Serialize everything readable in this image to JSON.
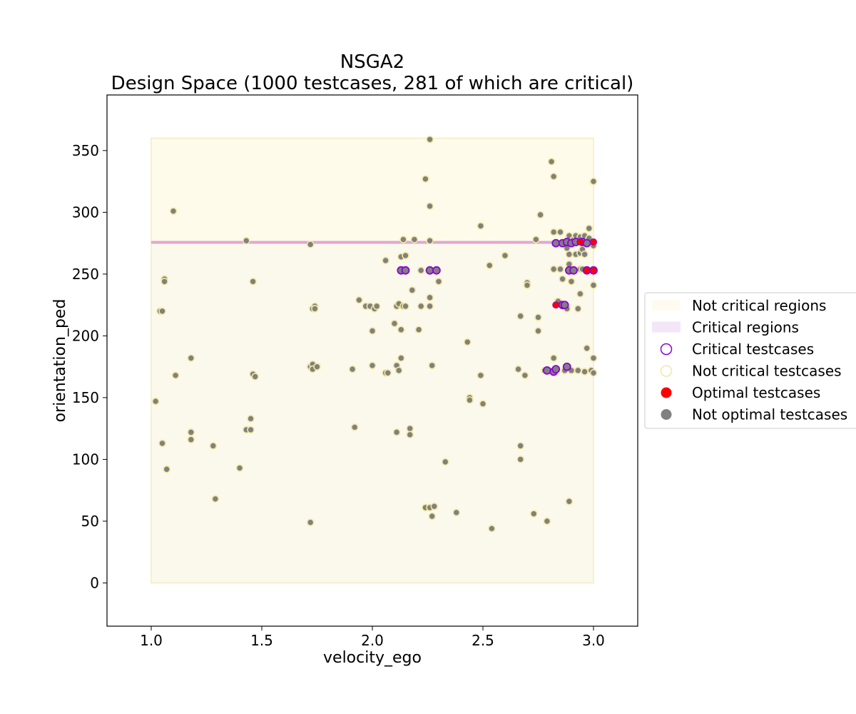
{
  "chart_data": {
    "type": "scatter",
    "title": "NSGA2",
    "subtitle": "Design Space (1000 testcases, 281 of which are critical)",
    "xlabel": "velocity_ego",
    "ylabel": "orientation_ped",
    "xlim": [
      0.8,
      3.2
    ],
    "ylim": [
      -35,
      395
    ],
    "xticks": [
      1.0,
      1.5,
      2.0,
      2.5,
      3.0
    ],
    "xtick_labels": [
      "1.0",
      "1.5",
      "2.0",
      "2.5",
      "3.0"
    ],
    "yticks": [
      0,
      50,
      100,
      150,
      200,
      250,
      300,
      350
    ],
    "ytick_labels": [
      "0",
      "50",
      "100",
      "150",
      "200",
      "250",
      "300",
      "350"
    ],
    "grid": false,
    "legend_position": "right",
    "regions": [
      {
        "name": "Not critical regions",
        "x": [
          1.0,
          3.0
        ],
        "y": [
          275,
          360
        ],
        "color": "#fffbea"
      },
      {
        "name": "Not critical regions",
        "x": [
          1.0,
          3.0
        ],
        "y": [
          0,
          275
        ],
        "color": "#fbf9ec"
      },
      {
        "name": "Critical regions",
        "x": [
          1.0,
          3.0
        ],
        "y": [
          275,
          276
        ],
        "color": "#e0a8cf"
      }
    ],
    "legend": [
      {
        "label": "Not critical regions",
        "kind": "patch",
        "color": "#fffbf0"
      },
      {
        "label": "Critical regions",
        "kind": "patch",
        "color": "#f3e6f9"
      },
      {
        "label": "Critical testcases",
        "kind": "hollow",
        "color": "#8e00d6"
      },
      {
        "label": "Not critical testcases",
        "kind": "hollow",
        "color": "#f2e8a0"
      },
      {
        "label": "Optimal testcases",
        "kind": "filled",
        "color": "#ff0000"
      },
      {
        "label": "Not optimal testcases",
        "kind": "filled",
        "color": "#808080"
      }
    ],
    "colors": {
      "critical_edge": "#8e00d6",
      "noncritical_edge": "#f2e8a0",
      "optimal": "#ff0000",
      "not_optimal": "#808080"
    },
    "series": [
      {
        "name": "Not critical testcases",
        "points": [
          [
            1.02,
            147
          ],
          [
            1.04,
            220
          ],
          [
            1.05,
            220
          ],
          [
            1.05,
            113
          ],
          [
            1.06,
            246
          ],
          [
            1.06,
            244
          ],
          [
            1.07,
            92
          ],
          [
            1.1,
            301
          ],
          [
            1.11,
            168
          ],
          [
            1.18,
            182
          ],
          [
            1.18,
            122
          ],
          [
            1.18,
            116
          ],
          [
            1.28,
            111
          ],
          [
            1.29,
            68
          ],
          [
            1.4,
            93
          ],
          [
            1.43,
            277
          ],
          [
            1.43,
            124
          ],
          [
            1.45,
            124
          ],
          [
            1.45,
            133
          ],
          [
            1.46,
            244
          ],
          [
            1.46,
            169
          ],
          [
            1.47,
            167
          ],
          [
            1.72,
            274
          ],
          [
            1.72,
            175
          ],
          [
            1.72,
            49
          ],
          [
            1.73,
            222
          ],
          [
            1.73,
            177
          ],
          [
            1.73,
            173
          ],
          [
            1.74,
            224
          ],
          [
            1.74,
            222
          ],
          [
            1.75,
            175
          ],
          [
            1.91,
            173
          ],
          [
            1.92,
            126
          ],
          [
            1.94,
            229
          ],
          [
            1.97,
            224
          ],
          [
            1.99,
            224
          ],
          [
            2.0,
            204
          ],
          [
            2.0,
            176
          ],
          [
            2.01,
            222
          ],
          [
            2.02,
            224
          ],
          [
            2.06,
            261
          ],
          [
            2.06,
            170
          ],
          [
            2.07,
            170
          ],
          [
            2.1,
            210
          ],
          [
            2.11,
            224
          ],
          [
            2.11,
            176
          ],
          [
            2.11,
            122
          ],
          [
            2.12,
            172
          ],
          [
            2.12,
            226
          ],
          [
            2.13,
            264
          ],
          [
            2.13,
            205
          ],
          [
            2.13,
            182
          ],
          [
            2.14,
            224
          ],
          [
            2.14,
            278
          ],
          [
            2.15,
            265
          ],
          [
            2.15,
            224
          ],
          [
            2.17,
            125
          ],
          [
            2.17,
            120
          ],
          [
            2.18,
            237
          ],
          [
            2.19,
            278
          ],
          [
            2.21,
            205
          ],
          [
            2.22,
            253
          ],
          [
            2.22,
            224
          ],
          [
            2.24,
            327
          ],
          [
            2.24,
            61
          ],
          [
            2.26,
            359
          ],
          [
            2.26,
            305
          ],
          [
            2.26,
            277
          ],
          [
            2.26,
            231
          ],
          [
            2.26,
            224
          ],
          [
            2.26,
            61
          ],
          [
            2.27,
            176
          ],
          [
            2.27,
            54
          ],
          [
            2.28,
            62
          ],
          [
            2.3,
            244
          ],
          [
            2.33,
            98
          ],
          [
            2.38,
            57
          ],
          [
            2.43,
            195
          ],
          [
            2.44,
            150
          ],
          [
            2.44,
            148
          ],
          [
            2.49,
            168
          ],
          [
            2.49,
            289
          ],
          [
            2.5,
            145
          ],
          [
            2.53,
            257
          ],
          [
            2.54,
            44
          ],
          [
            2.6,
            265
          ],
          [
            2.66,
            173
          ],
          [
            2.67,
            216
          ],
          [
            2.67,
            111
          ],
          [
            2.67,
            100
          ],
          [
            2.69,
            168
          ],
          [
            2.7,
            243
          ],
          [
            2.7,
            241
          ],
          [
            2.73,
            56
          ],
          [
            2.74,
            278
          ],
          [
            2.75,
            215
          ],
          [
            2.75,
            204
          ],
          [
            2.76,
            298
          ],
          [
            2.78,
            172
          ],
          [
            2.79,
            50
          ],
          [
            2.81,
            341
          ],
          [
            2.82,
            329
          ],
          [
            2.82,
            284
          ],
          [
            2.82,
            254
          ],
          [
            2.82,
            182
          ],
          [
            2.83,
            225
          ],
          [
            2.84,
            228
          ],
          [
            2.85,
            284
          ],
          [
            2.85,
            254
          ],
          [
            2.86,
            246
          ],
          [
            2.86,
            224
          ],
          [
            2.87,
            172
          ],
          [
            2.88,
            271
          ],
          [
            2.88,
            222
          ],
          [
            2.89,
            281
          ],
          [
            2.89,
            266
          ],
          [
            2.89,
            258
          ],
          [
            2.89,
            66
          ],
          [
            2.9,
            244
          ],
          [
            2.9,
            172
          ],
          [
            2.91,
            278
          ],
          [
            2.92,
            281
          ],
          [
            2.92,
            266
          ],
          [
            2.93,
            222
          ],
          [
            2.93,
            172
          ],
          [
            2.94,
            280
          ],
          [
            2.94,
            267
          ],
          [
            2.94,
            254
          ],
          [
            2.94,
            234
          ],
          [
            2.95,
            270
          ],
          [
            2.95,
            254
          ],
          [
            2.96,
            281
          ],
          [
            2.96,
            266
          ],
          [
            2.96,
            171
          ],
          [
            2.97,
            190
          ],
          [
            2.98,
            287
          ],
          [
            2.98,
            279
          ],
          [
            2.99,
            172
          ],
          [
            3.0,
            325
          ],
          [
            3.0,
            273
          ],
          [
            3.0,
            241
          ],
          [
            3.0,
            182
          ],
          [
            3.0,
            170
          ]
        ]
      },
      {
        "name": "Critical testcases",
        "points": [
          [
            2.13,
            253
          ],
          [
            2.15,
            253
          ],
          [
            2.26,
            253
          ],
          [
            2.29,
            253
          ],
          [
            2.83,
            275
          ],
          [
            2.86,
            275
          ],
          [
            2.88,
            276
          ],
          [
            2.9,
            275
          ],
          [
            2.92,
            276
          ],
          [
            2.95,
            276
          ],
          [
            2.97,
            275
          ],
          [
            2.89,
            253
          ],
          [
            2.91,
            253
          ],
          [
            2.97,
            253
          ],
          [
            2.86,
            225
          ],
          [
            2.87,
            225
          ],
          [
            2.79,
            172
          ],
          [
            2.82,
            171
          ],
          [
            2.83,
            173
          ],
          [
            2.88,
            175
          ],
          [
            3.0,
            253
          ]
        ]
      },
      {
        "name": "Optimal testcases",
        "points": [
          [
            2.83,
            225
          ],
          [
            2.94,
            276
          ],
          [
            2.97,
            253
          ],
          [
            3.0,
            253
          ],
          [
            3.0,
            276
          ]
        ]
      }
    ]
  }
}
